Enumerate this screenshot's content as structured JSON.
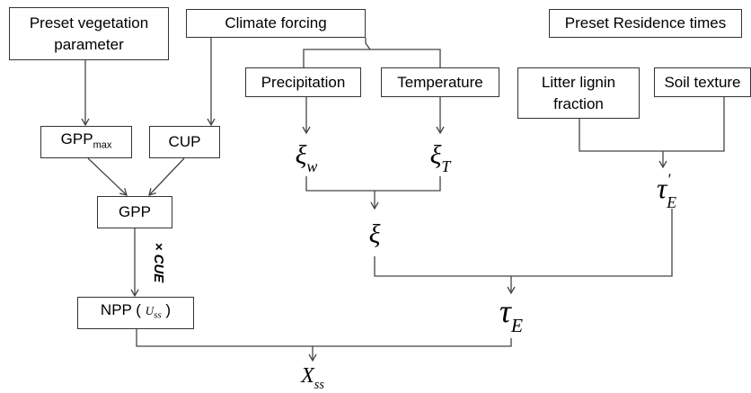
{
  "boxes": {
    "vegetation": "Preset vegetation parameter",
    "climate": "Climate forcing",
    "residence": "Preset Residence times",
    "precipitation": "Precipitation",
    "temperature": "Temperature",
    "litter": "Litter lignin fraction",
    "soil": "Soil texture",
    "gppmax": {
      "label": "GPP",
      "sub": "max"
    },
    "cup": "CUP",
    "gpp": "GPP",
    "npp": {
      "label": "NPP (",
      "var": "U",
      "sub": "ss",
      "close": ")"
    }
  },
  "edge_label": "× CUE",
  "symbols": {
    "xi_w": {
      "symbol": "ξ",
      "sub": "w"
    },
    "xi_t": {
      "symbol": "ξ",
      "sub": "T"
    },
    "xi": {
      "symbol": "ξ"
    },
    "tau_e_prime": {
      "symbol": "τ",
      "sup": "'",
      "sub": "E"
    },
    "tau_e": {
      "symbol": "τ",
      "sub": "E"
    },
    "x_ss": {
      "symbol": "X",
      "sub": "ss"
    }
  }
}
